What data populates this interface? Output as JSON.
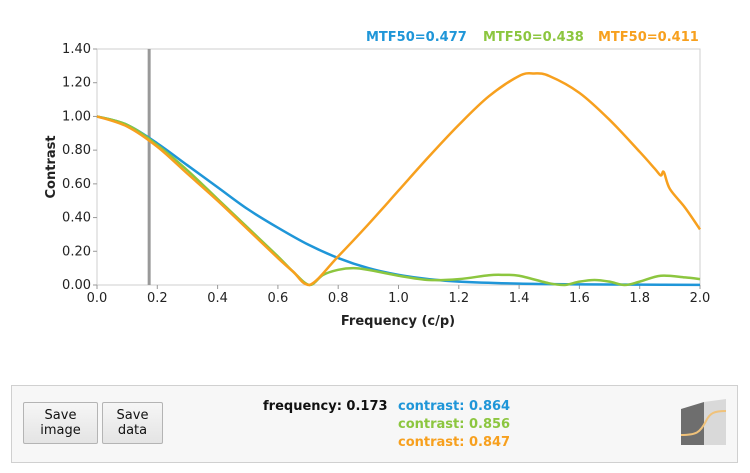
{
  "mtf_labels": [
    {
      "text": "MTF50=0.477",
      "color": "#1f96d8"
    },
    {
      "text": "MTF50=0.438",
      "color": "#8cc63f"
    },
    {
      "text": "MTF50=0.411",
      "color": "#f7a01e"
    }
  ],
  "buttons": {
    "save_image": "Save\nimage",
    "save_data": "Save\ndata"
  },
  "readout": {
    "frequency": "frequency: 0.173",
    "contrasts": [
      {
        "text": "contrast: 0.864",
        "color": "#1f96d8"
      },
      {
        "text": "contrast: 0.856",
        "color": "#8cc63f"
      },
      {
        "text": "contrast: 0.847",
        "color": "#f7a01e"
      }
    ]
  },
  "icons": {
    "thumbnail": "edge-profile-thumbnail-icon"
  },
  "chart_data": {
    "type": "line",
    "xlabel": "Frequency (c/p)",
    "ylabel": "Contrast",
    "xlim": [
      0,
      2.0
    ],
    "ylim": [
      0,
      1.4
    ],
    "xticks": [
      0.0,
      0.2,
      0.4,
      0.6,
      0.8,
      1.0,
      1.2,
      1.4,
      1.6,
      1.8,
      2.0
    ],
    "xtick_labels": [
      "0.0",
      "0.2",
      "0.4",
      "0.6",
      "0.8",
      "1.0",
      "1.2",
      "1.4",
      "1.6",
      "1.8",
      "2.0"
    ],
    "yticks": [
      0.0,
      0.2,
      0.4,
      0.6,
      0.8,
      1.0,
      1.2,
      1.4
    ],
    "ytick_labels": [
      "0.00",
      "0.20",
      "0.40",
      "0.60",
      "0.80",
      "1.00",
      "1.20",
      "1.40"
    ],
    "grid": false,
    "cursor_x": 0.173,
    "series": [
      {
        "color": "#1f96d8",
        "x": [
          0,
          0.1,
          0.2,
          0.3,
          0.4,
          0.5,
          0.6,
          0.7,
          0.8,
          0.9,
          1.0,
          1.1,
          1.2,
          1.4,
          1.6,
          1.8,
          2.0
        ],
        "y": [
          1.0,
          0.95,
          0.84,
          0.71,
          0.58,
          0.45,
          0.34,
          0.24,
          0.16,
          0.1,
          0.06,
          0.035,
          0.02,
          0.008,
          0.004,
          0.002,
          0.001
        ]
      },
      {
        "color": "#8cc63f",
        "x": [
          0,
          0.1,
          0.2,
          0.3,
          0.4,
          0.5,
          0.6,
          0.65,
          0.705,
          0.75,
          0.8,
          0.85,
          0.9,
          1.0,
          1.1,
          1.2,
          1.3,
          1.35,
          1.4,
          1.5,
          1.55,
          1.6,
          1.65,
          1.7,
          1.75,
          1.8,
          1.87,
          1.95,
          2.0
        ],
        "y": [
          1.0,
          0.95,
          0.83,
          0.68,
          0.51,
          0.34,
          0.17,
          0.08,
          0.0,
          0.06,
          0.09,
          0.1,
          0.09,
          0.055,
          0.03,
          0.035,
          0.058,
          0.06,
          0.055,
          0.01,
          0.0,
          0.02,
          0.03,
          0.02,
          0.0,
          0.02,
          0.055,
          0.045,
          0.035
        ]
      },
      {
        "color": "#f7a01e",
        "x": [
          0,
          0.1,
          0.2,
          0.3,
          0.4,
          0.5,
          0.6,
          0.65,
          0.705,
          0.8,
          0.9,
          1.0,
          1.1,
          1.2,
          1.3,
          1.4,
          1.45,
          1.5,
          1.6,
          1.7,
          1.8,
          1.85,
          1.87,
          1.88,
          1.9,
          1.95,
          2.0
        ],
        "y": [
          1.0,
          0.94,
          0.82,
          0.66,
          0.5,
          0.33,
          0.16,
          0.08,
          0.0,
          0.17,
          0.36,
          0.56,
          0.76,
          0.95,
          1.12,
          1.24,
          1.255,
          1.24,
          1.14,
          0.98,
          0.79,
          0.69,
          0.65,
          0.67,
          0.57,
          0.46,
          0.33
        ]
      }
    ]
  }
}
